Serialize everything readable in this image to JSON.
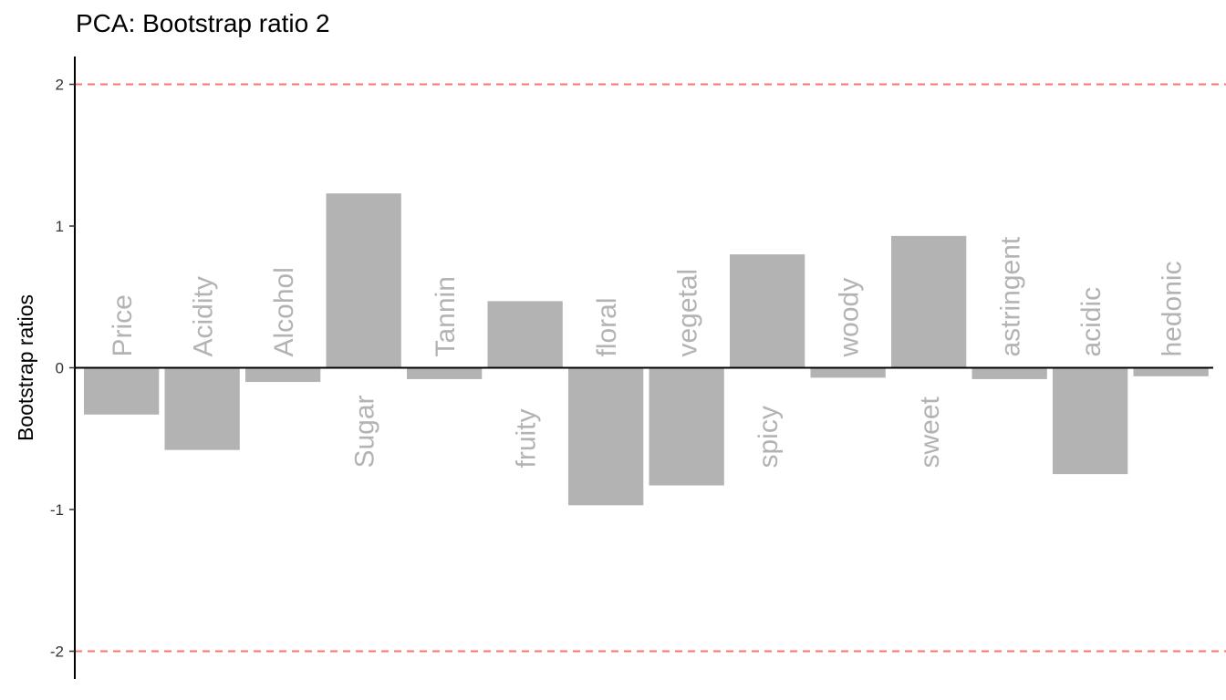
{
  "chart_data": {
    "type": "bar",
    "title": "PCA: Bootstrap ratio 2",
    "xlabel": "",
    "ylabel": "Bootstrap ratios",
    "ylim": [
      -2.2,
      2.2
    ],
    "yticks": [
      -2,
      -1,
      0,
      1,
      2
    ],
    "ytick_labels": [
      "-2",
      "-1",
      "0",
      "1",
      "2"
    ],
    "reference_lines": [
      2,
      -2
    ],
    "categories": [
      "Price",
      "Acidity",
      "Alcohol",
      "Sugar",
      "Tannin",
      "fruity",
      "floral",
      "vegetal",
      "spicy",
      "woody",
      "sweet",
      "astringent",
      "acidic",
      "hedonic"
    ],
    "values": [
      -0.33,
      -0.58,
      -0.1,
      1.23,
      -0.08,
      0.47,
      -0.97,
      -0.83,
      0.8,
      -0.07,
      0.93,
      -0.08,
      -0.75,
      -0.06
    ],
    "grid": false,
    "legend": "none",
    "colors": {
      "bar": "#b3b3b3",
      "bar_label": "#b3b3b3",
      "reference_line": "#f8766d",
      "axis": "#000000"
    }
  }
}
